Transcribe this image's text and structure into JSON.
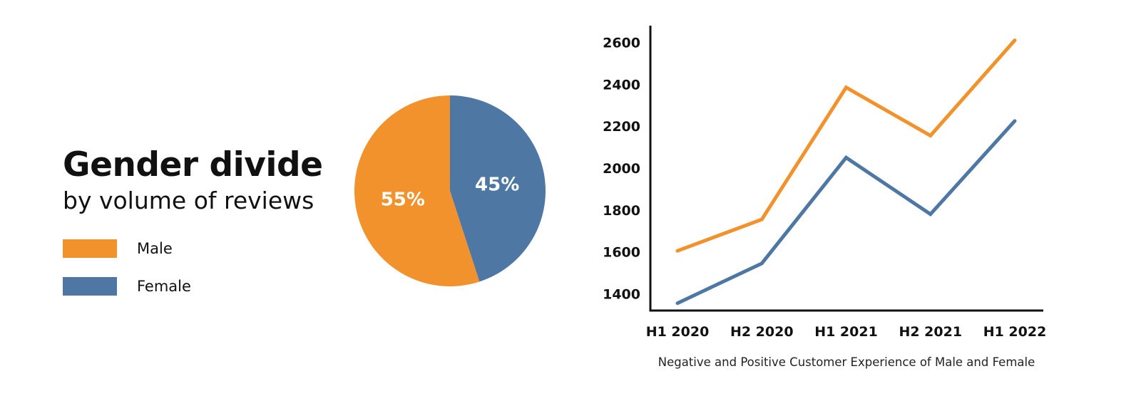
{
  "heading": {
    "title": "Gender divide",
    "subtitle": "by volume of reviews"
  },
  "legend": [
    {
      "label": "Male",
      "color": "#f2922d"
    },
    {
      "label": "Female",
      "color": "#4e78a3"
    }
  ],
  "chart_data": [
    {
      "type": "pie",
      "slices": [
        {
          "name": "Male",
          "value": 55,
          "label": "55%",
          "color": "#f2922d"
        },
        {
          "name": "Female",
          "value": 45,
          "label": "45%",
          "color": "#4e78a3"
        }
      ]
    },
    {
      "type": "line",
      "categories": [
        "H1 2020",
        "H2 2020",
        "H1 2021",
        "H2 2021",
        "H1 2022"
      ],
      "series": [
        {
          "values": [
            1605,
            1755,
            2385,
            2155,
            2610
          ],
          "color": "#f2922d"
        },
        {
          "values": [
            1355,
            1545,
            2050,
            1780,
            2225
          ],
          "color": "#4e78a3"
        }
      ],
      "yticks": [
        1400,
        1600,
        1800,
        2000,
        2200,
        2400,
        2600
      ],
      "ylim": [
        1320,
        2680
      ],
      "caption": "Negative and Positive Customer Experience of Male and Female",
      "grid": false
    }
  ]
}
